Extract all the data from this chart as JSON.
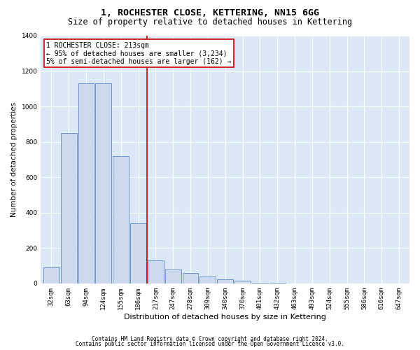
{
  "title": "1, ROCHESTER CLOSE, KETTERING, NN15 6GG",
  "subtitle": "Size of property relative to detached houses in Kettering",
  "xlabel": "Distribution of detached houses by size in Kettering",
  "ylabel": "Number of detached properties",
  "categories": [
    "32sqm",
    "63sqm",
    "94sqm",
    "124sqm",
    "155sqm",
    "186sqm",
    "217sqm",
    "247sqm",
    "278sqm",
    "309sqm",
    "340sqm",
    "370sqm",
    "401sqm",
    "432sqm",
    "463sqm",
    "493sqm",
    "524sqm",
    "555sqm",
    "586sqm",
    "616sqm",
    "647sqm"
  ],
  "values": [
    90,
    850,
    1130,
    1130,
    720,
    340,
    130,
    80,
    60,
    40,
    25,
    15,
    5,
    2,
    1,
    0,
    0,
    0,
    0,
    0,
    0
  ],
  "bar_color": "#ccd9ee",
  "bar_edge_color": "#5b8bc9",
  "vline_color": "#cc0000",
  "vline_pos": 6,
  "annotation_text": "1 ROCHESTER CLOSE: 213sqm\n← 95% of detached houses are smaller (3,234)\n5% of semi-detached houses are larger (162) →",
  "annotation_box_color": "#cc0000",
  "ylim": [
    0,
    1400
  ],
  "yticks": [
    0,
    200,
    400,
    600,
    800,
    1000,
    1200,
    1400
  ],
  "background_color": "#dce8f5",
  "grid_color": "#ffffff",
  "footer1": "Contains HM Land Registry data © Crown copyright and database right 2024.",
  "footer2": "Contains public sector information licensed under the Open Government Licence v3.0.",
  "title_fontsize": 9.5,
  "subtitle_fontsize": 8.5,
  "tick_fontsize": 6.5,
  "ylabel_fontsize": 7.5,
  "xlabel_fontsize": 8,
  "annotation_fontsize": 7,
  "footer_fontsize": 5.5
}
